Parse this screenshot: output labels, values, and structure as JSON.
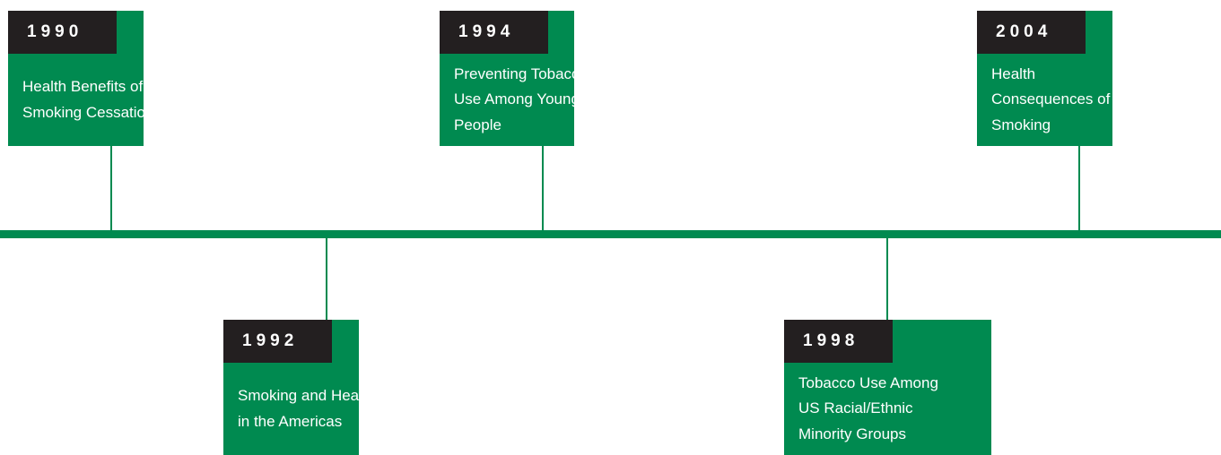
{
  "events": [
    {
      "year": "1990",
      "title": [
        "Health Benefits of",
        "Smoking Cessation"
      ]
    },
    {
      "year": "1992",
      "title": [
        "Smoking and Health",
        "in the Americas"
      ]
    },
    {
      "year": "1994",
      "title": [
        "Preventing Tobacco",
        "Use Among Young",
        "People"
      ]
    },
    {
      "year": "1998",
      "title": [
        "Tobacco Use Among",
        "US Racial/Ethnic",
        "Minority Groups"
      ]
    },
    {
      "year": "2004",
      "title": [
        "Health",
        "Consequences of",
        "Smoking"
      ]
    }
  ]
}
